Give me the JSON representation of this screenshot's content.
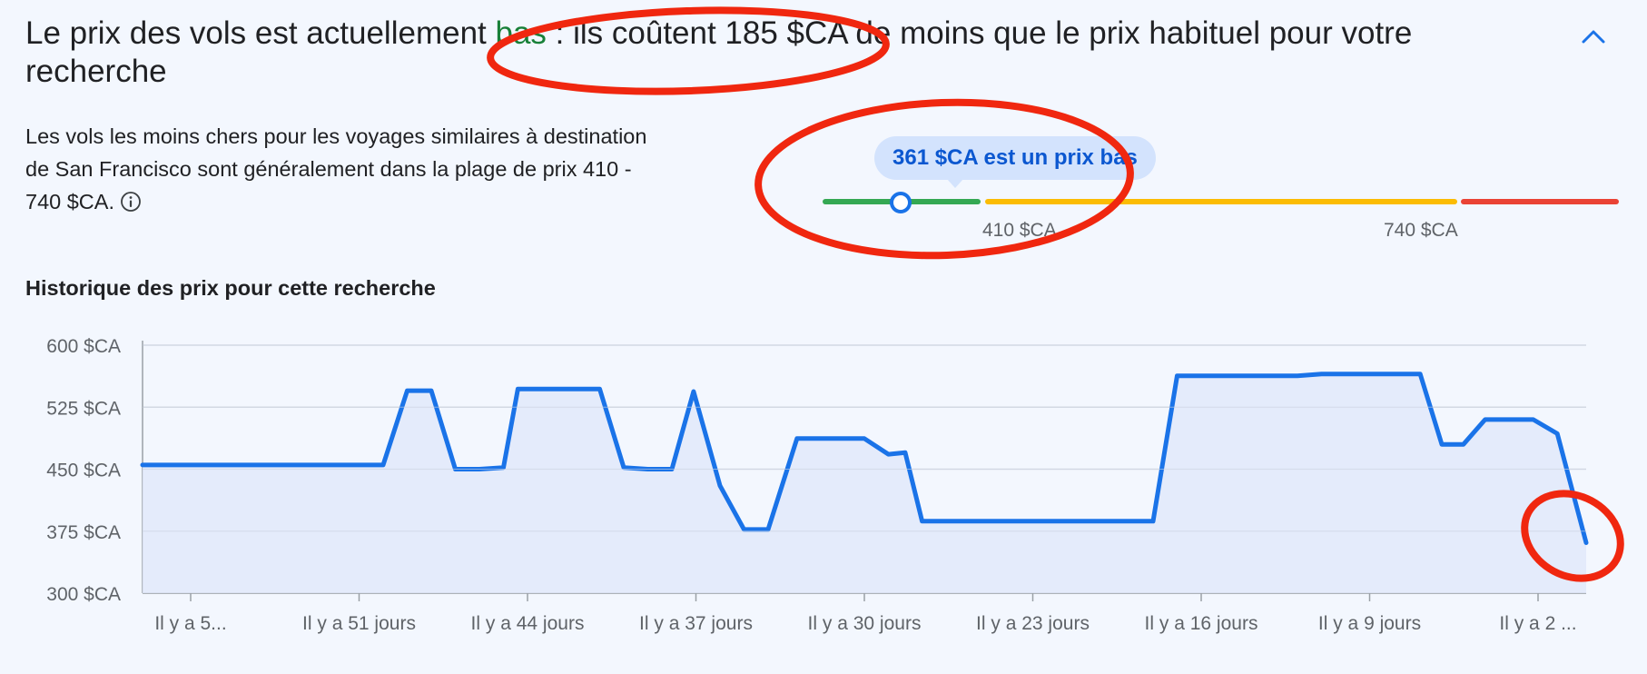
{
  "header": {
    "title_prefix": "Le prix des vols est actuellement",
    "title_status": "bas",
    "title_suffix": ": ils coûtent 185 $CA de moins que le prix habituel pour votre recherche",
    "collapse_icon": "chevron-up-icon"
  },
  "description": {
    "text": "Les vols les moins chers pour les voyages similaires à destination de San Francisco sont généralement dans la plage de prix 410 - 740 $CA.",
    "info_icon": "info-icon"
  },
  "price_range": {
    "tooltip": "361 $CA est un prix bas",
    "current_price": 361,
    "low_threshold_label": "410 $CA",
    "high_threshold_label": "740 $CA",
    "low_threshold": 410,
    "high_threshold": 740,
    "colors": {
      "low": "#34a853",
      "typical": "#fbbc04",
      "high": "#ea4335"
    }
  },
  "history": {
    "title": "Historique des prix pour cette recherche"
  },
  "chart_data": {
    "type": "area",
    "title": "Historique des prix pour cette recherche",
    "xlabel": "",
    "ylabel": "",
    "ylim": [
      300,
      600
    ],
    "yticks": [
      300,
      375,
      450,
      525,
      600
    ],
    "ytick_labels": [
      "300 $CA",
      "375 $CA",
      "450 $CA",
      "525 $CA",
      "600 $CA"
    ],
    "xlim": [
      60,
      0
    ],
    "xticks": [
      58,
      51,
      44,
      37,
      30,
      23,
      16,
      9,
      2
    ],
    "xtick_labels": [
      "Il y a 5...",
      "Il y a 51 jours",
      "Il y a 44 jours",
      "Il y a 37 jours",
      "Il y a 30 jours",
      "Il y a 23 jours",
      "Il y a 16 jours",
      "Il y a 9 jours",
      "Il y a 2 ..."
    ],
    "series": [
      {
        "line_color": "#1a73e8",
        "fill_color": "#e1e9fa",
        "points": [
          [
            60,
            455
          ],
          [
            50,
            455
          ],
          [
            49,
            545
          ],
          [
            48,
            545
          ],
          [
            47,
            450
          ],
          [
            46,
            450
          ],
          [
            45,
            452
          ],
          [
            44.4,
            547
          ],
          [
            41,
            547
          ],
          [
            40,
            452
          ],
          [
            39,
            450
          ],
          [
            38,
            450
          ],
          [
            37.1,
            544
          ],
          [
            36,
            430
          ],
          [
            35,
            377
          ],
          [
            34,
            377
          ],
          [
            32.8,
            487
          ],
          [
            30,
            487
          ],
          [
            29,
            468
          ],
          [
            28.3,
            470
          ],
          [
            27.6,
            387
          ],
          [
            18,
            387
          ],
          [
            17,
            563
          ],
          [
            12,
            563
          ],
          [
            11,
            565
          ],
          [
            6.9,
            565
          ],
          [
            6,
            480
          ],
          [
            5.1,
            480
          ],
          [
            4.2,
            510
          ],
          [
            2.2,
            510
          ],
          [
            1.2,
            493
          ],
          [
            0,
            361
          ]
        ]
      }
    ],
    "grid": true,
    "legend": "none"
  },
  "annotations": {
    "color": "#f0270f",
    "description": "red hand-drawn ellipses"
  }
}
